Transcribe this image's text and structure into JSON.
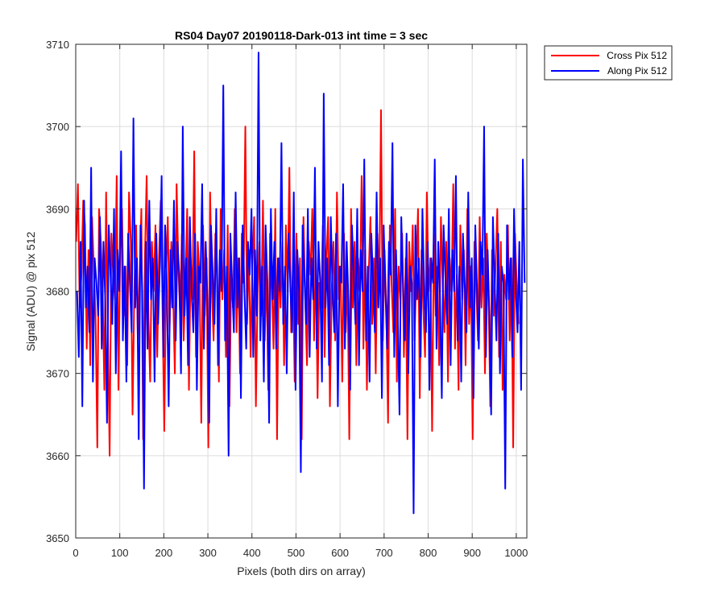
{
  "chart_data": {
    "type": "line",
    "title": "RS04 Day07 20190118-Dark-013 int time = 3 sec",
    "xlabel": "Pixels (both dirs on array)",
    "ylabel": "Signal (ADU) @ pix 512",
    "xlim": [
      0,
      1024
    ],
    "ylim": [
      3650,
      3710
    ],
    "xticks": [
      0,
      100,
      200,
      300,
      400,
      500,
      600,
      700,
      800,
      900,
      1000
    ],
    "yticks": [
      3650,
      3660,
      3670,
      3680,
      3690,
      3700,
      3710
    ],
    "grid": true,
    "legend_position": "outside-top-right",
    "colors": {
      "cross": "#ff0000",
      "along": "#0000ff",
      "grid": "#dcdcdc",
      "axis": "#262626"
    },
    "series": [
      {
        "name": "Cross Pix 512",
        "x_start": 1,
        "x_step": 4,
        "values": [
          3686,
          3693,
          3678,
          3682,
          3691,
          3688,
          3673,
          3685,
          3671,
          3689,
          3683,
          3677,
          3661,
          3690,
          3686,
          3680,
          3668,
          3692,
          3675,
          3660,
          3687,
          3682,
          3679,
          3694,
          3668,
          3685,
          3690,
          3677,
          3683,
          3671,
          3692,
          3686,
          3665,
          3680,
          3688,
          3674,
          3682,
          3690,
          3662,
          3684,
          3694,
          3677,
          3669,
          3686,
          3680,
          3688,
          3672,
          3684,
          3691,
          3678,
          3663,
          3682,
          3689,
          3675,
          3686,
          3680,
          3670,
          3693,
          3683,
          3677,
          3687,
          3674,
          3681,
          3690,
          3668,
          3684,
          3679,
          3697,
          3672,
          3686,
          3682,
          3664,
          3688,
          3677,
          3684,
          3661,
          3692,
          3680,
          3674,
          3687,
          3683,
          3669,
          3690,
          3679,
          3685,
          3672,
          3688,
          3666,
          3682,
          3678,
          3690,
          3675,
          3684,
          3670,
          3687,
          3681,
          3700,
          3676,
          3685,
          3672,
          3683,
          3689,
          3666,
          3680,
          3686,
          3677,
          3691,
          3674,
          3683,
          3668,
          3687,
          3681,
          3673,
          3690,
          3662,
          3684,
          3678,
          3686,
          3671,
          3688,
          3680,
          3695,
          3675,
          3683,
          3669,
          3687,
          3676,
          3684,
          3662,
          3689,
          3679,
          3671,
          3686,
          3682,
          3690,
          3674,
          3685,
          3667,
          3681,
          3678,
          3688,
          3672,
          3684,
          3689,
          3666,
          3680,
          3686,
          3674,
          3692,
          3679,
          3683,
          3669,
          3687,
          3675,
          3682,
          3662,
          3690,
          3678,
          3686,
          3671,
          3684,
          3680,
          3694,
          3673,
          3685,
          3668,
          3682,
          3689,
          3676,
          3684,
          3670,
          3687,
          3680,
          3702,
          3674,
          3685,
          3678,
          3664,
          3688,
          3681,
          3675,
          3690,
          3669,
          3683,
          3679,
          3687,
          3672,
          3684,
          3662,
          3686,
          3680,
          3688,
          3674,
          3682,
          3690,
          3667,
          3685,
          3678,
          3672,
          3692,
          3680,
          3684,
          3663,
          3687,
          3677,
          3683,
          3671,
          3689,
          3681,
          3675,
          3686,
          3669,
          3684,
          3680,
          3693,
          3673,
          3682,
          3668,
          3688,
          3679,
          3685,
          3671,
          3690,
          3676,
          3683,
          3662,
          3686,
          3681,
          3674,
          3689,
          3678,
          3684,
          3670,
          3687,
          3680,
          3666,
          3685,
          3677,
          3683,
          3690,
          3672,
          3686,
          3668,
          3682,
          3679,
          3688,
          3674,
          3684,
          3661,
          3687,
          3681,
          3676
        ]
      },
      {
        "name": "Along Pix 512",
        "x_start": 3,
        "x_step": 4,
        "values": [
          3680,
          3672,
          3686,
          3666,
          3691,
          3678,
          3683,
          3675,
          3695,
          3669,
          3684,
          3681,
          3677,
          3689,
          3673,
          3686,
          3679,
          3664,
          3688,
          3682,
          3676,
          3690,
          3670,
          3685,
          3680,
          3697,
          3674,
          3683,
          3669,
          3687,
          3681,
          3675,
          3701,
          3678,
          3684,
          3662,
          3688,
          3680,
          3656,
          3686,
          3673,
          3691,
          3679,
          3684,
          3669,
          3687,
          3676,
          3683,
          3694,
          3672,
          3688,
          3680,
          3666,
          3685,
          3678,
          3691,
          3674,
          3686,
          3682,
          3670,
          3700,
          3677,
          3684,
          3671,
          3689,
          3680,
          3675,
          3687,
          3668,
          3683,
          3681,
          3693,
          3673,
          3686,
          3679,
          3664,
          3688,
          3682,
          3676,
          3690,
          3671,
          3685,
          3680,
          3705,
          3674,
          3683,
          3660,
          3687,
          3681,
          3675,
          3692,
          3678,
          3684,
          3667,
          3688,
          3680,
          3673,
          3686,
          3682,
          3690,
          3672,
          3685,
          3677,
          3709,
          3674,
          3683,
          3669,
          3688,
          3681,
          3664,
          3690,
          3679,
          3686,
          3673,
          3684,
          3680,
          3698,
          3676,
          3683,
          3670,
          3687,
          3681,
          3675,
          3692,
          3668,
          3685,
          3680,
          3658,
          3688,
          3682,
          3676,
          3690,
          3672,
          3684,
          3679,
          3695,
          3673,
          3686,
          3681,
          3669,
          3704,
          3678,
          3684,
          3671,
          3689,
          3680,
          3675,
          3687,
          3666,
          3683,
          3681,
          3693,
          3673,
          3686,
          3679,
          3668,
          3688,
          3682,
          3676,
          3690,
          3671,
          3685,
          3680,
          3696,
          3674,
          3683,
          3669,
          3687,
          3681,
          3675,
          3692,
          3678,
          3684,
          3667,
          3688,
          3680,
          3673,
          3686,
          3682,
          3698,
          3672,
          3685,
          3677,
          3665,
          3689,
          3681,
          3674,
          3687,
          3670,
          3683,
          3681,
          3653,
          3688,
          3679,
          3684,
          3672,
          3690,
          3680,
          3675,
          3686,
          3668,
          3684,
          3681,
          3696,
          3673,
          3686,
          3679,
          3667,
          3688,
          3682,
          3676,
          3690,
          3671,
          3685,
          3680,
          3694,
          3674,
          3683,
          3669,
          3687,
          3681,
          3675,
          3692,
          3678,
          3684,
          3667,
          3688,
          3680,
          3673,
          3686,
          3682,
          3700,
          3672,
          3685,
          3677,
          3665,
          3689,
          3681,
          3674,
          3687,
          3670,
          3683,
          3681,
          3656,
          3688,
          3679,
          3684,
          3672,
          3690,
          3680,
          3675,
          3686,
          3668,
          3696,
          3681
        ]
      }
    ]
  }
}
